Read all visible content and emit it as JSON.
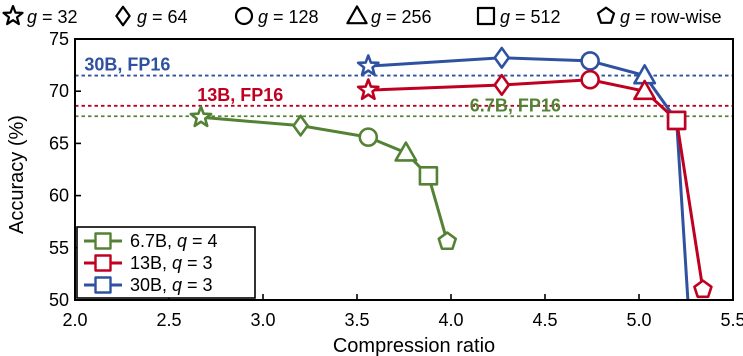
{
  "chart_data": {
    "type": "line",
    "xlabel": "Compression ratio",
    "ylabel": "Accuracy (%)",
    "xlim": [
      2.0,
      5.5
    ],
    "ylim": [
      50,
      75
    ],
    "xticks": [
      "2.0",
      "2.5",
      "3.0",
      "3.5",
      "4.0",
      "4.5",
      "5.0",
      "5.5"
    ],
    "yticks": [
      "50",
      "55",
      "60",
      "65",
      "70",
      "75"
    ],
    "grid": false,
    "top_legend": [
      {
        "marker": "star",
        "prefix": "g",
        "text": " = 32"
      },
      {
        "marker": "diamond",
        "prefix": "g",
        "text": " = 64"
      },
      {
        "marker": "circle",
        "prefix": "g",
        "text": " = 128"
      },
      {
        "marker": "triangle",
        "prefix": "g",
        "text": " = 256"
      },
      {
        "marker": "square",
        "prefix": "g",
        "text": " = 512"
      },
      {
        "marker": "pentagon",
        "prefix": "g",
        "text": " = row-wise"
      }
    ],
    "legend_placement": "bottom-left",
    "series": [
      {
        "name": "6.7B, q = 4",
        "label_model": "6.7B,",
        "label_q": "q",
        "label_value": " = 4",
        "color": "#548235",
        "points": [
          {
            "x": 2.67,
            "y": 67.5,
            "marker": "star"
          },
          {
            "x": 3.2,
            "y": 66.7,
            "marker": "diamond"
          },
          {
            "x": 3.56,
            "y": 65.6,
            "marker": "circle"
          },
          {
            "x": 3.76,
            "y": 64.1,
            "marker": "triangle"
          },
          {
            "x": 3.88,
            "y": 61.9,
            "marker": "square"
          },
          {
            "x": 3.98,
            "y": 55.6,
            "marker": "pentagon"
          }
        ]
      },
      {
        "name": "13B, q = 3",
        "label_model": "13B,",
        "label_q": "q",
        "label_value": " = 3",
        "color": "#c00020",
        "points": [
          {
            "x": 3.56,
            "y": 70.1,
            "marker": "star"
          },
          {
            "x": 4.27,
            "y": 70.6,
            "marker": "diamond"
          },
          {
            "x": 4.74,
            "y": 71.1,
            "marker": "circle"
          },
          {
            "x": 5.03,
            "y": 70.0,
            "marker": "triangle"
          },
          {
            "x": 5.2,
            "y": 67.2,
            "marker": "square"
          },
          {
            "x": 5.34,
            "y": 51.0,
            "marker": "pentagon"
          }
        ]
      },
      {
        "name": "30B, q = 3",
        "label_model": "30B,",
        "label_q": "q",
        "label_value": " = 3",
        "color": "#2f52a0",
        "points": [
          {
            "x": 3.56,
            "y": 72.4,
            "marker": "star"
          },
          {
            "x": 4.27,
            "y": 73.2,
            "marker": "diamond"
          },
          {
            "x": 4.74,
            "y": 72.9,
            "marker": "circle"
          },
          {
            "x": 5.03,
            "y": 71.5,
            "marker": "triangle"
          },
          {
            "x": 5.2,
            "y": 67.2,
            "marker": "square"
          },
          {
            "x": 5.26,
            "y": 50.0,
            "marker": "none"
          }
        ]
      }
    ],
    "reference_lines": [
      {
        "label": "30B, FP16",
        "y": 71.5,
        "color": "#2f52a0",
        "label_x": 2.05
      },
      {
        "label": "13B, FP16",
        "y": 68.6,
        "color": "#c00020",
        "label_x": 2.65
      },
      {
        "label": "6.7B, FP16",
        "y": 67.6,
        "color": "#548235",
        "label_x": 4.1
      }
    ]
  }
}
